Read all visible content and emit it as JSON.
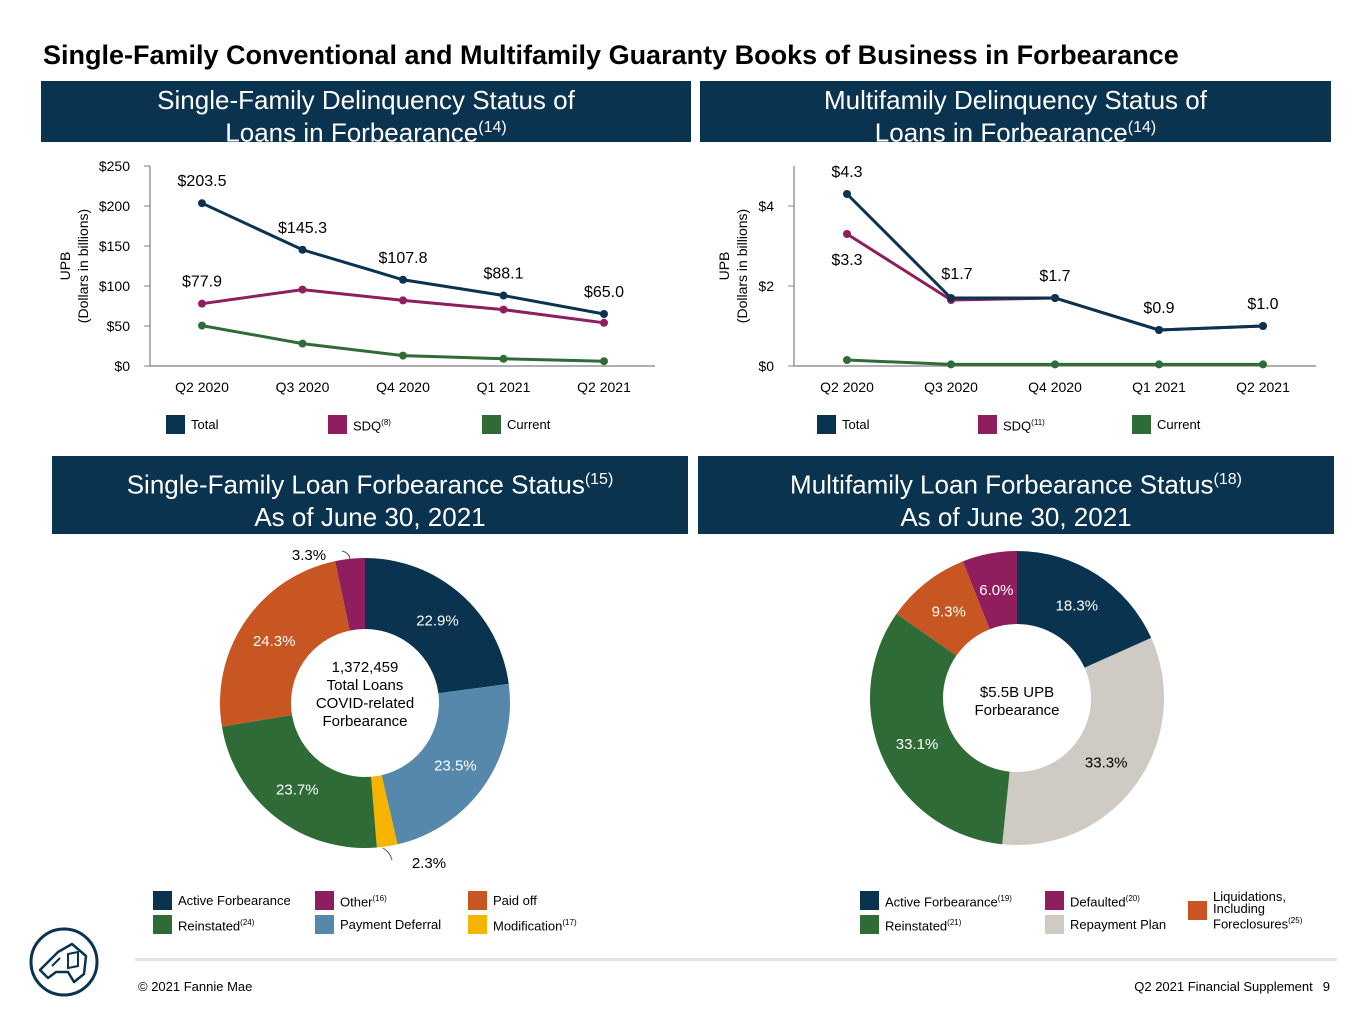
{
  "page": {
    "title": "Single-Family Conventional and Multifamily Guaranty Books of Business in Forbearance",
    "footer_copyright": "© 2021 Fannie Mae",
    "footer_doc": "Q2 2021 Financial Supplement",
    "footer_page": "9"
  },
  "banners": {
    "sf_delinquency": {
      "line1": "Single-Family Delinquency Status of",
      "line2": "Loans in Forbearance",
      "note": "(14)"
    },
    "mf_delinquency": {
      "line1": "Multifamily Delinquency Status of",
      "line2": "Loans in Forbearance",
      "note": "(14)"
    },
    "sf_forbearance": {
      "line1": "Single-Family Loan Forbearance Status",
      "note": "(15)",
      "line2": "As of June 30, 2021"
    },
    "mf_forbearance": {
      "line1": "Multifamily Loan Forbearance Status",
      "note": "(18)",
      "line2": "As of June 30, 2021"
    }
  },
  "colors": {
    "navy": "#0a3350",
    "magenta": "#8e1e5e",
    "green": "#2f6b37",
    "orange": "#c75623",
    "steel": "#5588aa",
    "gold": "#f5b400",
    "gray": "#cfcbc4"
  },
  "chart_data": [
    {
      "id": "sf_line",
      "type": "line",
      "categories": [
        "Q2 2020",
        "Q3 2020",
        "Q4 2020",
        "Q1 2021",
        "Q2 2021"
      ],
      "ylabel": "UPB",
      "ylabel2": "(Dollars in billions)",
      "ylim": [
        0,
        250
      ],
      "yticks": [
        {
          "value": 0,
          "label": "$0"
        },
        {
          "value": 50,
          "label": "$50"
        },
        {
          "value": 100,
          "label": "$100"
        },
        {
          "value": 150,
          "label": "$150"
        },
        {
          "value": 200,
          "label": "$200"
        },
        {
          "value": 250,
          "label": "$250"
        }
      ],
      "grid": false,
      "legend": "bottom",
      "series": [
        {
          "name": "Total",
          "note": "",
          "color": "#0a3350",
          "values": [
            203.5,
            145.3,
            107.8,
            88.1,
            65.0
          ],
          "labels": [
            "$203.5",
            "$145.3",
            "$107.8",
            "$88.1",
            "$65.0"
          ]
        },
        {
          "name": "SDQ",
          "note": "(8)",
          "color": "#8e1e5e",
          "values": [
            77.9,
            95.5,
            82,
            70.5,
            54
          ],
          "labels": [
            "$77.9",
            "",
            "",
            "",
            ""
          ]
        },
        {
          "name": "Current",
          "note": "",
          "color": "#2f6b37",
          "values": [
            50.5,
            28,
            13,
            9,
            6
          ],
          "labels": [
            "",
            "",
            "",
            "",
            ""
          ]
        }
      ]
    },
    {
      "id": "mf_line",
      "type": "line",
      "categories": [
        "Q2 2020",
        "Q3 2020",
        "Q4 2020",
        "Q1 2021",
        "Q2 2021"
      ],
      "ylabel": "UPB",
      "ylabel2": "(Dollars in billions)",
      "ylim": [
        0,
        5
      ],
      "yticks": [
        {
          "value": 0,
          "label": "$0"
        },
        {
          "value": 2,
          "label": "$2"
        },
        {
          "value": 4,
          "label": "$4"
        }
      ],
      "grid": false,
      "legend": "bottom",
      "series": [
        {
          "name": "Total",
          "note": "",
          "color": "#0a3350",
          "values": [
            4.3,
            1.7,
            1.7,
            0.9,
            1.0
          ],
          "labels": [
            "$4.3",
            "$1.7",
            "$1.7",
            "$0.9",
            "$1.0"
          ]
        },
        {
          "name": "SDQ",
          "note": "(11)",
          "color": "#8e1e5e",
          "values": [
            3.3,
            1.65,
            1.7,
            0.9,
            1.0
          ],
          "labels": [
            "$3.3",
            "",
            "",
            "",
            ""
          ]
        },
        {
          "name": "Current",
          "note": "",
          "color": "#2f6b37",
          "values": [
            0.15,
            0.04,
            0.04,
            0.04,
            0.04
          ],
          "labels": [
            "",
            "",
            "",
            "",
            ""
          ]
        }
      ]
    },
    {
      "id": "sf_donut",
      "type": "pie",
      "center_lines": [
        "1,372,459",
        "Total Loans",
        "COVID-related",
        "Forbearance"
      ],
      "slices": [
        {
          "name": "Active Forbearance",
          "note": "",
          "value": 22.9,
          "label": "22.9%",
          "color": "#0a3350",
          "label_color": "#ffffff"
        },
        {
          "name": "Payment Deferral",
          "note": "",
          "value": 23.5,
          "label": "23.5%",
          "color": "#5588aa",
          "label_color": "#ffffff"
        },
        {
          "name": "Modification",
          "note": "(17)",
          "value": 2.3,
          "label": "2.3%",
          "color": "#f5b400",
          "label_color": "#000000"
        },
        {
          "name": "Reinstated",
          "note": "(24)",
          "value": 23.7,
          "label": "23.7%",
          "color": "#2f6b37",
          "label_color": "#ffffff"
        },
        {
          "name": "Paid off",
          "note": "",
          "value": 24.3,
          "label": "24.3%",
          "color": "#c75623",
          "label_color": "#ffffff"
        },
        {
          "name": "Other",
          "note": "(16)",
          "value": 3.3,
          "label": "3.3%",
          "color": "#8e1e5e",
          "label_color": "#000000"
        }
      ]
    },
    {
      "id": "mf_donut",
      "type": "pie",
      "center_lines": [
        "$5.5B UPB",
        "Forbearance"
      ],
      "slices": [
        {
          "name": "Active Forbearance",
          "note": "(19)",
          "value": 18.3,
          "label": "18.3%",
          "color": "#0a3350",
          "label_color": "#ffffff"
        },
        {
          "name": "Repayment Plan",
          "note": "",
          "value": 33.3,
          "label": "33.3%",
          "color": "#cfcbc4",
          "label_color": "#000000"
        },
        {
          "name": "Reinstated",
          "note": "(21)",
          "value": 33.1,
          "label": "33.1%",
          "color": "#2f6b37",
          "label_color": "#ffffff"
        },
        {
          "name": "Liquidations, Including Foreclosures",
          "note": "(25)",
          "value": 9.3,
          "label": "9.3%",
          "color": "#c75623",
          "label_color": "#ffffff"
        },
        {
          "name": "Defaulted",
          "note": "(20)",
          "value": 6.0,
          "label": "6.0%",
          "color": "#8e1e5e",
          "label_color": "#ffffff"
        }
      ]
    }
  ]
}
